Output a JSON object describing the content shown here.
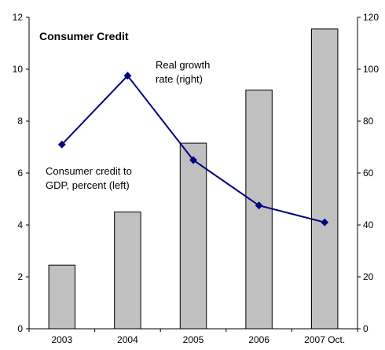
{
  "chart_data": {
    "type": "bar+line",
    "title": "Consumer Credit",
    "categories": [
      "2003",
      "2004",
      "2005",
      "2006",
      "2007 Oct."
    ],
    "series": [
      {
        "name": "Consumer credit to GDP, percent (left)",
        "type": "bar",
        "axis": "left",
        "values": [
          2.45,
          4.5,
          7.15,
          9.2,
          11.55
        ]
      },
      {
        "name": "Real growth rate (right)",
        "type": "line",
        "axis": "right",
        "values": [
          71,
          97.5,
          65,
          47.5,
          41
        ]
      }
    ],
    "left_axis": {
      "ylim": [
        0,
        12
      ],
      "ticks": [
        0,
        2,
        4,
        6,
        8,
        10,
        12
      ]
    },
    "right_axis": {
      "ylim": [
        0,
        120
      ],
      "ticks": [
        0,
        20,
        40,
        60,
        80,
        100,
        120
      ]
    },
    "annotations": {
      "line_label": [
        "Real growth",
        "rate (right)"
      ],
      "bar_label": [
        "Consumer credit to",
        "GDP, percent (left)"
      ]
    },
    "legend": "none",
    "grid": false
  },
  "colors": {
    "bar_fill": "#c0c0c0",
    "bar_stroke": "#000000",
    "line": "#000080",
    "axis": "#000000"
  }
}
